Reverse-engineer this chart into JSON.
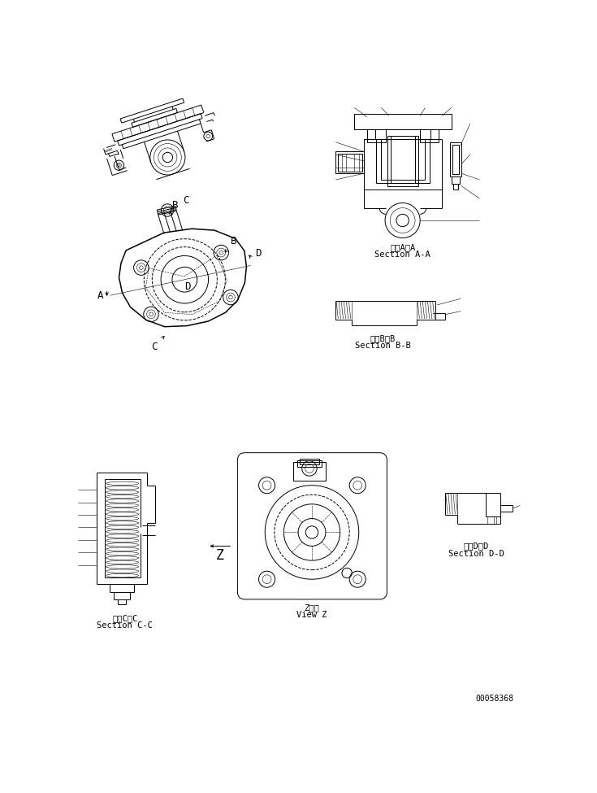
{
  "background_color": "#ffffff",
  "line_color": "#000000",
  "labels": {
    "section_aa_jp": "断面A－A",
    "section_aa_en": "Section A-A",
    "section_bb_jp": "断面B－B",
    "section_bb_en": "Section B-B",
    "section_cc_jp": "断面C－C",
    "section_cc_en": "Section C-C",
    "section_dd_jp": "断面D－D",
    "section_dd_en": "Section D-D",
    "view_z_jp": "Z　視",
    "view_z_en": "View Z",
    "part_number": "00058368"
  },
  "font_size_label": 7.5,
  "font_size_small": 7.0,
  "lw": 0.7,
  "tlw": 0.4,
  "thklw": 1.1
}
